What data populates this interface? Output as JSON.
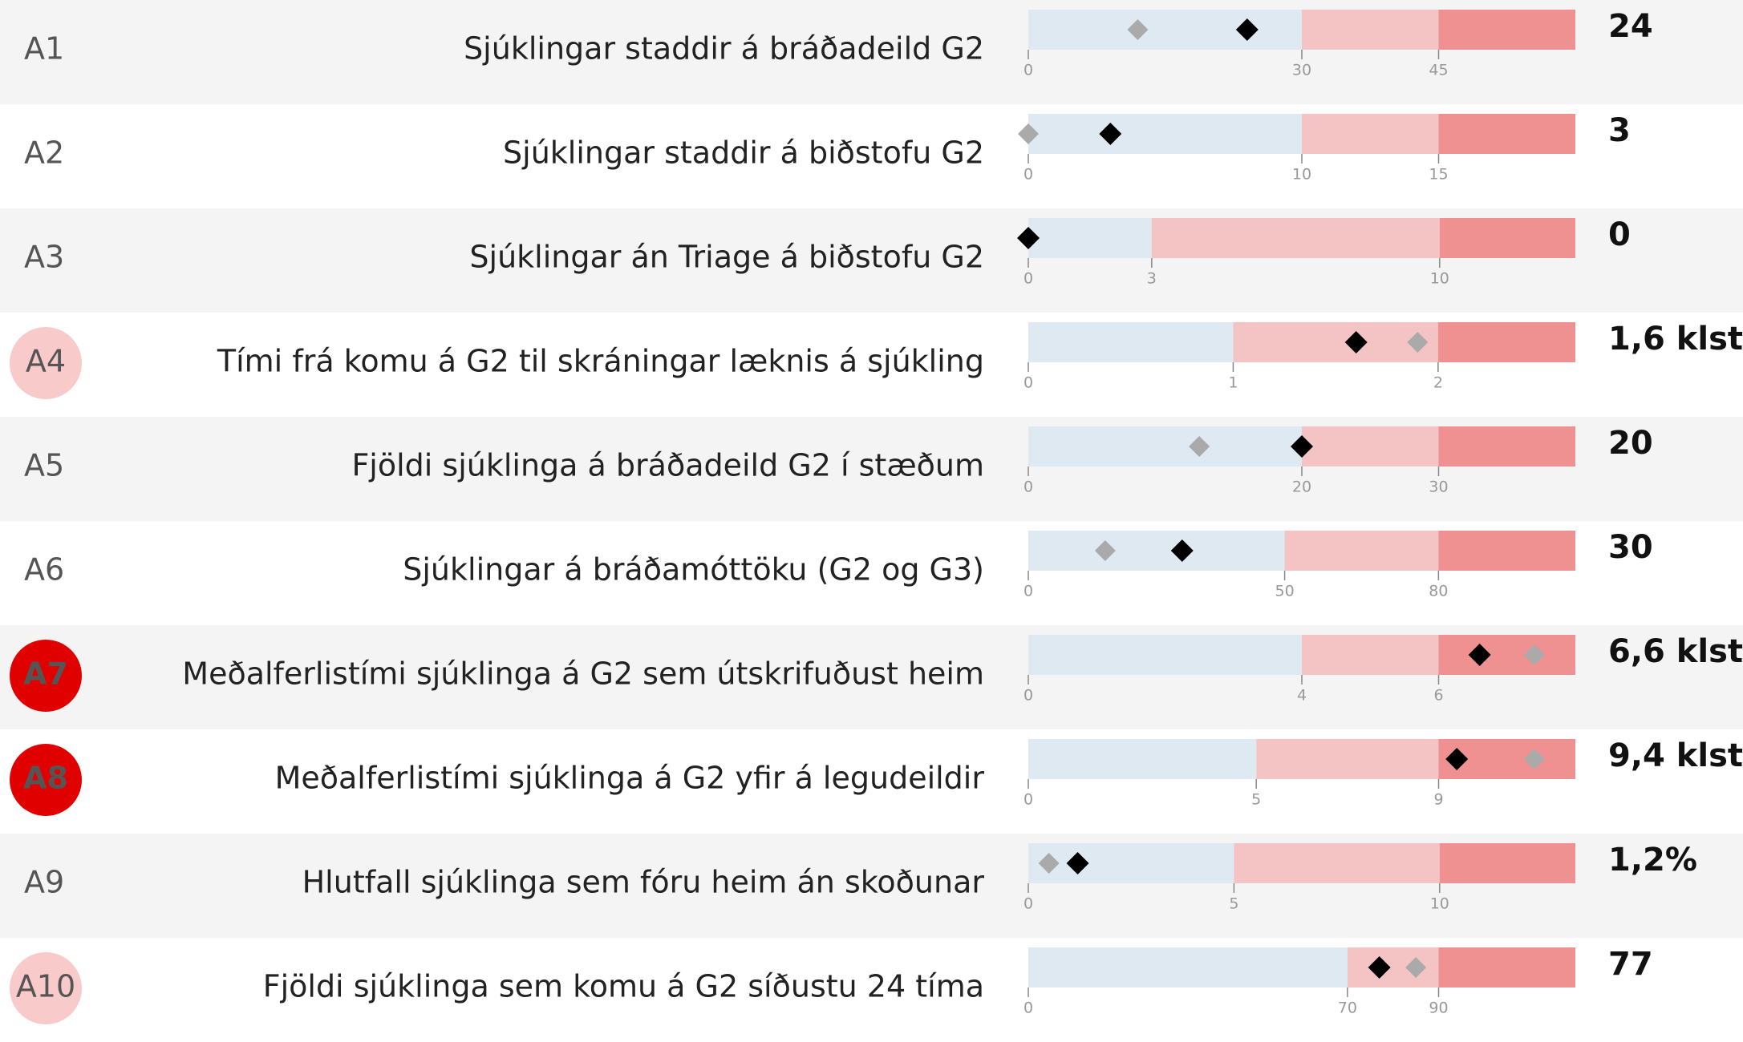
{
  "style": {
    "band_colors": [
      "#dfe9f2",
      "#f4c4c4",
      "#ef9191"
    ],
    "value_color": "#000000",
    "reference_color": "#aaaaaa",
    "row_colors": [
      "#f4f4f4",
      "#ffffff"
    ]
  },
  "chart_data": [
    {
      "type": "bullet",
      "id": "A1",
      "title": "Sjúklingar staddir á bráðadeild G2",
      "xlim": [
        0,
        60
      ],
      "xticks": [
        0,
        30,
        45
      ],
      "values": [
        24
      ],
      "value_labels": [
        "24"
      ],
      "reference": 12
    },
    {
      "type": "bullet",
      "id": "A2",
      "title": "Sjúklingar staddir á biðstofu G2",
      "xlim": [
        0,
        20
      ],
      "xticks": [
        0,
        10,
        15
      ],
      "values": [
        3
      ],
      "value_labels": [
        "3"
      ],
      "reference": 0
    },
    {
      "type": "bullet",
      "id": "A3",
      "title": "Sjúklingar án Triage á biðstofu G2",
      "xlim": [
        0,
        13.3
      ],
      "xticks": [
        0,
        3,
        10
      ],
      "values": [
        0
      ],
      "value_labels": [
        "0"
      ]
    },
    {
      "type": "bullet",
      "id": "A4",
      "title": "Tími frá komu á G2 til skráningar læknis á sjúkling",
      "xlim": [
        0,
        2.67
      ],
      "xticks": [
        0,
        1,
        2
      ],
      "values": [
        1.6
      ],
      "value_labels": [
        "1,6 klst."
      ],
      "reference": 1.9,
      "badge_color": "#f8caca",
      "id_color": "#555555"
    },
    {
      "type": "bullet",
      "id": "A5",
      "title": "Fjöldi sjúklinga á bráðadeild G2 í stæðum",
      "xlim": [
        0,
        40
      ],
      "xticks": [
        0,
        20,
        30
      ],
      "values": [
        20
      ],
      "value_labels": [
        "20"
      ],
      "reference": 12.5
    },
    {
      "type": "bullet",
      "id": "A6",
      "title": "Sjúklingar á bráðamóttöku (G2 og G3)",
      "xlim": [
        0,
        106.7
      ],
      "xticks": [
        0,
        50,
        80
      ],
      "values": [
        30
      ],
      "value_labels": [
        "30"
      ],
      "reference": 15
    },
    {
      "type": "bullet",
      "id": "A7",
      "title": "Meðalferlistími sjúklinga á G2 sem útskrifuðust heim",
      "xlim": [
        0,
        8
      ],
      "xticks": [
        0,
        4,
        6
      ],
      "values": [
        6.6
      ],
      "value_labels": [
        "6,6 klst."
      ],
      "reference": 7.4,
      "badge_color": "#e00000",
      "id_color": "#ffffff"
    },
    {
      "type": "bullet",
      "id": "A8",
      "title": "Meðalferlistími sjúklinga á G2 yfir á legudeildir",
      "xlim": [
        0,
        12
      ],
      "xticks": [
        0,
        5,
        9
      ],
      "values": [
        9.4
      ],
      "value_labels": [
        "9,4 klst."
      ],
      "reference": 11.1,
      "badge_color": "#e00000",
      "id_color": "#ffffff"
    },
    {
      "type": "bullet",
      "id": "A9",
      "title": "Hlutfall sjúklinga sem fóru heim án skoðunar",
      "xlim": [
        0,
        13.3
      ],
      "xticks": [
        0,
        5,
        10
      ],
      "values": [
        1.2
      ],
      "value_labels": [
        "1,2%"
      ],
      "reference": 0.5
    },
    {
      "type": "bullet",
      "id": "A10",
      "title": "Fjöldi sjúklinga sem komu á G2 síðustu 24 tíma",
      "xlim": [
        0,
        120
      ],
      "xticks": [
        0,
        70,
        90
      ],
      "values": [
        77
      ],
      "value_labels": [
        "77"
      ],
      "reference": 85,
      "badge_color": "#f8caca",
      "id_color": "#555555"
    }
  ]
}
